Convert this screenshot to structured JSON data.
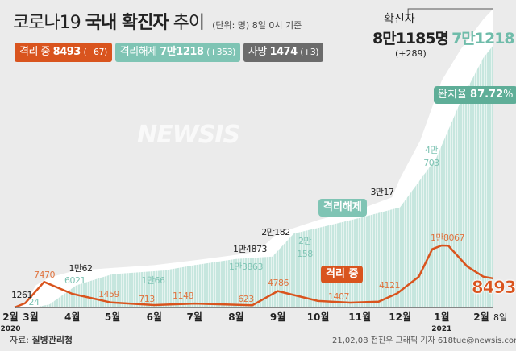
{
  "title": {
    "regular": "코로나19",
    "bold": "국내 확진자",
    "rest": "추이",
    "unit": "(단위: 명) 8일 0시 기준"
  },
  "badges": [
    {
      "label": "격리 중",
      "value": "8493",
      "delta": "(−67)",
      "color": "#d9541e"
    },
    {
      "label": "격리해제",
      "value": "7만1218",
      "delta": "(+353)",
      "color": "#7fc4b4"
    },
    {
      "label": "사망",
      "value": "1474",
      "delta": "(+3)",
      "color": "#6b6b6b"
    }
  ],
  "total": {
    "label": "확진자",
    "value": "8만1185명",
    "released": "7만1218",
    "change": "(+289)"
  },
  "recovery_rate": {
    "label": "완치율",
    "value": "87.72",
    "unit": "%"
  },
  "series_labels": {
    "active": "격리 중",
    "released": "격리해제"
  },
  "final_active": "8493",
  "source": {
    "label": "자료:",
    "value": "질병관리청"
  },
  "credit": "21,02,08 전진우 그래픽 기자 618tue@newsis.com",
  "watermark": "NEWSIS",
  "colors": {
    "active": "#d9541e",
    "released": "#bfe3da",
    "confirmed": "#ffffff",
    "background": "#ebebeb"
  },
  "chart_data": {
    "type": "area",
    "x_range": [
      "2020-02-18",
      "2021-02-08"
    ],
    "x_ticks": [
      {
        "date": "2020-02-01",
        "label": "2월",
        "sub": "2020"
      },
      {
        "date": "2020-03-01",
        "label": "3월"
      },
      {
        "date": "2020-04-01",
        "label": "4월"
      },
      {
        "date": "2020-05-01",
        "label": "5월"
      },
      {
        "date": "2020-06-01",
        "label": "6월"
      },
      {
        "date": "2020-07-01",
        "label": "7월"
      },
      {
        "date": "2020-08-01",
        "label": "8월"
      },
      {
        "date": "2020-09-01",
        "label": "9월"
      },
      {
        "date": "2020-10-01",
        "label": "10월"
      },
      {
        "date": "2020-11-01",
        "label": "11월"
      },
      {
        "date": "2020-12-01",
        "label": "12월"
      },
      {
        "date": "2021-01-01",
        "label": "1월",
        "sub": "2021"
      },
      {
        "date": "2021-02-01",
        "label": "2월"
      },
      {
        "date": "2021-02-08",
        "label": "8일"
      }
    ],
    "series": [
      {
        "name": "확진자",
        "points": [
          [
            "2020-02-18",
            31
          ],
          [
            "2020-02-26",
            1261
          ],
          [
            "2020-03-05",
            6088
          ],
          [
            "2020-03-15",
            8162
          ],
          [
            "2020-04-03",
            10062
          ],
          [
            "2020-05-01",
            10774
          ],
          [
            "2020-06-01",
            11541
          ],
          [
            "2020-07-01",
            12850
          ],
          [
            "2020-08-01",
            14336
          ],
          [
            "2020-08-11",
            14873
          ],
          [
            "2020-08-20",
            16346
          ],
          [
            "2020-09-01",
            20182
          ],
          [
            "2020-10-01",
            23812
          ],
          [
            "2020-11-01",
            26732
          ],
          [
            "2020-11-25",
            30017
          ],
          [
            "2020-12-01",
            35163
          ],
          [
            "2020-12-16",
            45442
          ],
          [
            "2021-01-01",
            61769
          ],
          [
            "2021-01-15",
            70212
          ],
          [
            "2021-02-01",
            78508
          ],
          [
            "2021-02-08",
            81185
          ]
        ]
      },
      {
        "name": "격리해제",
        "points": [
          [
            "2020-02-18",
            0
          ],
          [
            "2020-03-04",
            24
          ],
          [
            "2020-03-15",
            834
          ],
          [
            "2020-04-04",
            6021
          ],
          [
            "2020-05-01",
            9072
          ],
          [
            "2020-06-08",
            10066
          ],
          [
            "2020-07-01",
            11537
          ],
          [
            "2020-08-01",
            13233
          ],
          [
            "2020-08-28",
            13863
          ],
          [
            "2020-09-13",
            20158
          ],
          [
            "2020-10-01",
            21666
          ],
          [
            "2020-11-01",
            24395
          ],
          [
            "2020-12-01",
            27283
          ],
          [
            "2020-12-28",
            40703
          ],
          [
            "2021-01-15",
            56000
          ],
          [
            "2021-02-01",
            68000
          ],
          [
            "2021-02-08",
            71218
          ]
        ]
      },
      {
        "name": "격리 중",
        "points": [
          [
            "2020-02-18",
            0
          ],
          [
            "2020-02-26",
            1261
          ],
          [
            "2020-03-11",
            7470
          ],
          [
            "2020-04-01",
            4000
          ],
          [
            "2020-04-30",
            1459
          ],
          [
            "2020-06-01",
            713
          ],
          [
            "2020-07-01",
            1148
          ],
          [
            "2020-08-13",
            623
          ],
          [
            "2020-09-01",
            4786
          ],
          [
            "2020-10-01",
            1900
          ],
          [
            "2020-10-25",
            1407
          ],
          [
            "2020-11-15",
            1700
          ],
          [
            "2020-11-29",
            4121
          ],
          [
            "2020-12-15",
            9000
          ],
          [
            "2020-12-25",
            17000
          ],
          [
            "2021-01-01",
            18067
          ],
          [
            "2021-01-06",
            18000
          ],
          [
            "2021-01-20",
            12000
          ],
          [
            "2021-02-01",
            9000
          ],
          [
            "2021-02-08",
            8493
          ]
        ]
      }
    ],
    "annotations": [
      {
        "series": 0,
        "date": "2020-02-26",
        "value": 1261,
        "text": "1261"
      },
      {
        "series": 0,
        "date": "2020-04-03",
        "value": 10062,
        "text": "1만62"
      },
      {
        "series": 0,
        "date": "2020-08-11",
        "value": 14873,
        "text": "1만4873"
      },
      {
        "series": 0,
        "date": "2020-09-01",
        "value": 20182,
        "text": "2만182"
      },
      {
        "series": 0,
        "date": "2020-11-25",
        "value": 30017,
        "text": "3만17"
      },
      {
        "series": 1,
        "date": "2020-03-04",
        "value": 24,
        "text": "24"
      },
      {
        "series": 1,
        "date": "2020-04-04",
        "value": 6021,
        "text": "6021"
      },
      {
        "series": 1,
        "date": "2020-06-08",
        "value": 10066,
        "text": "1만66"
      },
      {
        "series": 1,
        "date": "2020-08-28",
        "value": 13863,
        "text": "1만3863"
      },
      {
        "series": 1,
        "date": "2020-09-13",
        "value": 20158,
        "text": "2만 158"
      },
      {
        "series": 1,
        "date": "2020-12-28",
        "value": 40703,
        "text": "4만 703"
      },
      {
        "series": 2,
        "date": "2020-03-11",
        "value": 7470,
        "text": "7470"
      },
      {
        "series": 2,
        "date": "2020-04-30",
        "value": 1459,
        "text": "1459"
      },
      {
        "series": 2,
        "date": "2020-06-01",
        "value": 713,
        "text": "713"
      },
      {
        "series": 2,
        "date": "2020-07-01",
        "value": 1148,
        "text": "1148"
      },
      {
        "series": 2,
        "date": "2020-08-13",
        "value": 623,
        "text": "623"
      },
      {
        "series": 2,
        "date": "2020-09-01",
        "value": 4786,
        "text": "4786"
      },
      {
        "series": 2,
        "date": "2020-10-25",
        "value": 1407,
        "text": "1407"
      },
      {
        "series": 2,
        "date": "2020-11-29",
        "value": 4121,
        "text": "4121"
      },
      {
        "series": 2,
        "date": "2021-01-01",
        "value": 18067,
        "text": "1만8067"
      }
    ]
  }
}
